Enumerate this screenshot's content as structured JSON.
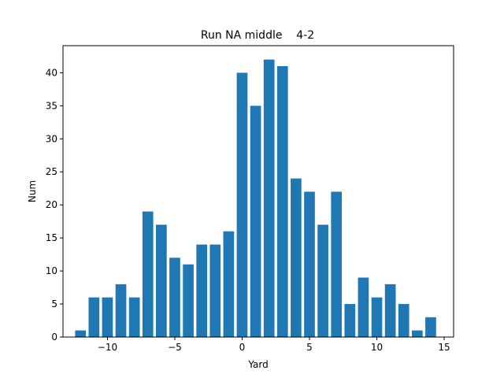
{
  "chart_data": {
    "type": "bar",
    "title": "Run NA middle    4-2",
    "xlabel": "Yard",
    "ylabel": "Num",
    "bar_color": "#1f77b4",
    "xlim": [
      -13.3,
      15.7
    ],
    "ylim": [
      0,
      44.1
    ],
    "xticks": [
      -10,
      -5,
      0,
      5,
      10,
      15
    ],
    "yticks": [
      0,
      5,
      10,
      15,
      20,
      25,
      30,
      35,
      40
    ],
    "bar_width": 0.8,
    "x": [
      -12,
      -11,
      -10,
      -9,
      -8,
      -7,
      -6,
      -5,
      -4,
      -3,
      -2,
      -1,
      0,
      1,
      2,
      3,
      4,
      5,
      6,
      7,
      8,
      9,
      10,
      11,
      12,
      13,
      14
    ],
    "values": [
      1,
      6,
      6,
      8,
      6,
      19,
      17,
      12,
      11,
      14,
      14,
      16,
      40,
      35,
      42,
      41,
      24,
      22,
      17,
      22,
      5,
      9,
      6,
      8,
      5,
      1,
      3
    ],
    "grid": false,
    "legend": "none"
  }
}
